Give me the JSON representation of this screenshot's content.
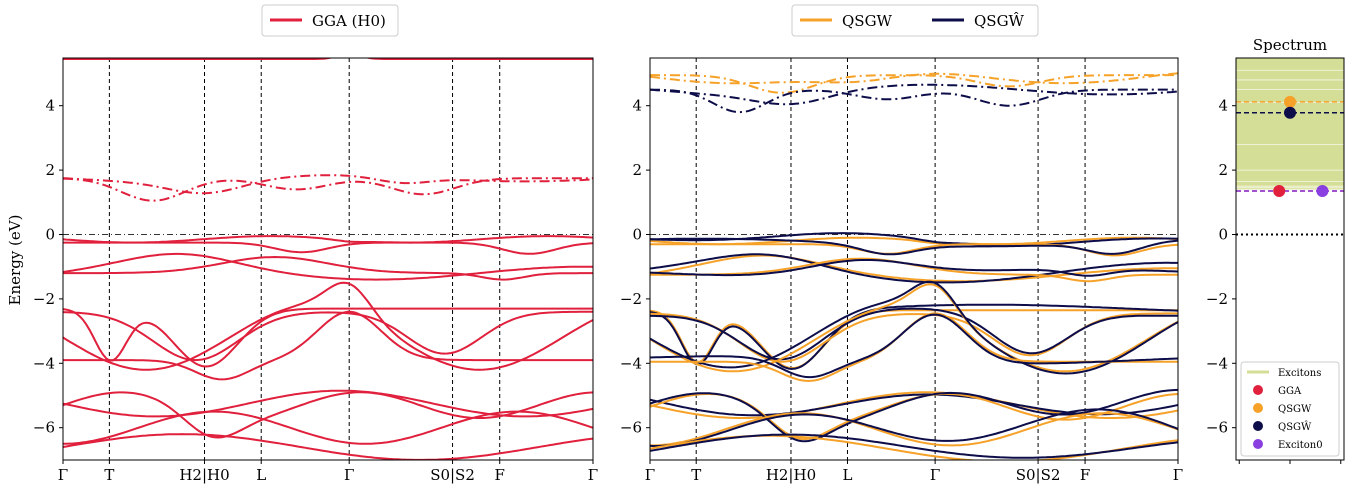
{
  "chart_data": [
    {
      "type": "line",
      "legend": [
        "GGA (H0)"
      ],
      "ylabel": "Energy (eV)",
      "ylim": [
        -7,
        5.5
      ],
      "yticks": [
        "4",
        "2",
        "0",
        "−2",
        "−4",
        "−6"
      ],
      "xticks": [
        "Γ",
        "T",
        "H2|H0",
        "L",
        "Γ",
        "S0|S2",
        "F",
        "Γ"
      ],
      "series": [
        {
          "name": "GGA (H0)",
          "color": "#e0203c"
        }
      ]
    },
    {
      "type": "line",
      "legend": [
        "QSGW",
        "QSGŴ"
      ],
      "ylim": [
        -7,
        5.5
      ],
      "yticks": [
        "4",
        "2",
        "0",
        "−2",
        "−4",
        "−6"
      ],
      "xticks": [
        "Γ",
        "T",
        "H2|H0",
        "L",
        "Γ",
        "S0|S2",
        "F",
        "Γ"
      ],
      "series": [
        {
          "name": "QSGW",
          "color": "#f6a229"
        },
        {
          "name": "QSGŴ",
          "color": "#0d0d4a"
        }
      ]
    },
    {
      "type": "scatter",
      "title": "Spectrum",
      "ylim": [
        -7,
        5.5
      ],
      "yticks": [
        "4",
        "2",
        "0",
        "−2",
        "−4",
        "−6"
      ],
      "exciton_band": [
        1.4,
        5.5
      ],
      "exciton_lines": [
        1.45,
        1.5,
        1.65,
        2.0,
        2.8,
        4.1,
        4.5,
        4.8,
        5.1
      ],
      "points": [
        {
          "name": "GGA",
          "x": 0.4,
          "y": 1.35,
          "color": "#e0203c",
          "line_y": 1.35
        },
        {
          "name": "QSGW",
          "x": 0.5,
          "y": 4.12,
          "color": "#f6a229",
          "line_y": 4.12
        },
        {
          "name": "QSGŴ",
          "x": 0.5,
          "y": 3.78,
          "color": "#0d0d4a",
          "line_y": 3.78
        },
        {
          "name": "Exciton0",
          "x": 0.8,
          "y": 1.35,
          "color": "#8a3fe0",
          "line_y": 1.35
        }
      ],
      "legend": [
        "Excitons",
        "GGA",
        "QSGW",
        "QSGŴ",
        "Exciton0"
      ],
      "exciton_color": "#d4de96"
    }
  ]
}
